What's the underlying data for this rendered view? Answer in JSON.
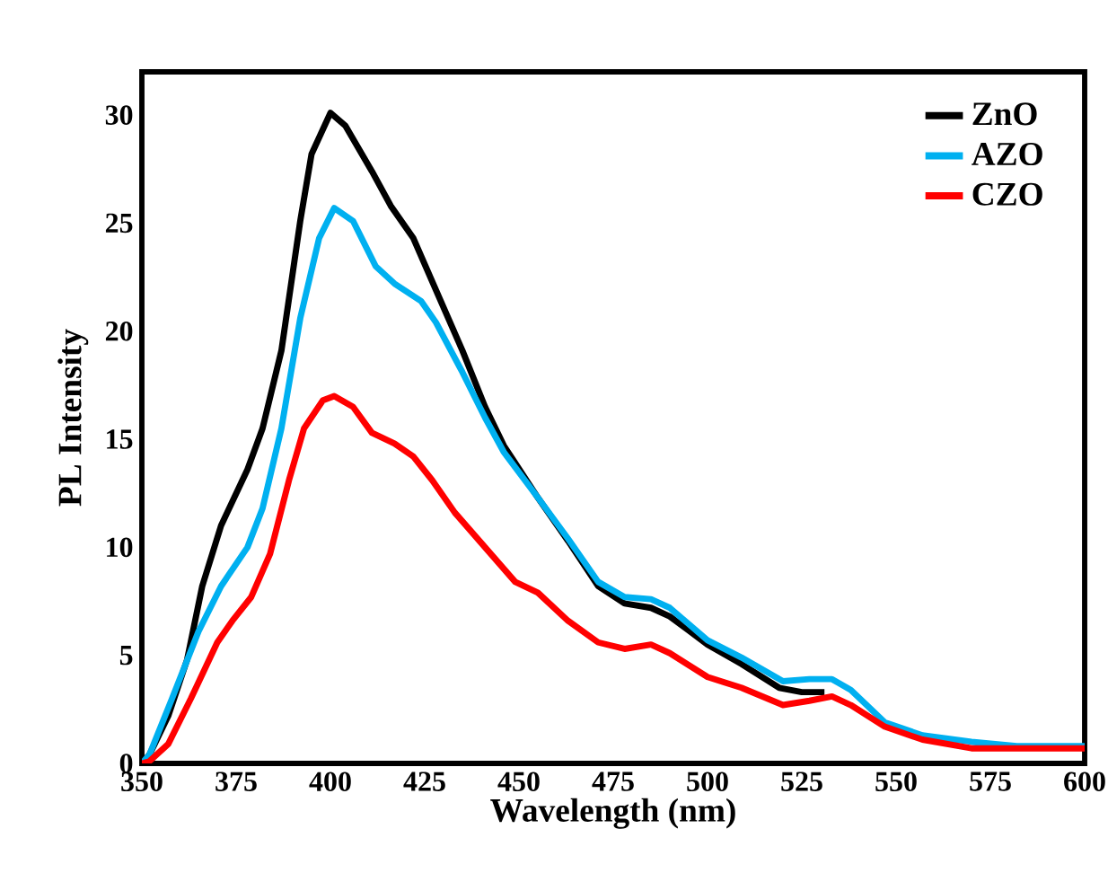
{
  "chart_data": {
    "type": "line",
    "xlabel": "Wavelength (nm)",
    "ylabel": "PL Intensity",
    "xlim": [
      350,
      600
    ],
    "xticks": [
      350,
      375,
      400,
      425,
      450,
      475,
      500,
      525,
      550,
      575,
      600
    ],
    "ylim": [
      0,
      32
    ],
    "yticks": [
      0,
      5,
      10,
      15,
      20,
      25,
      30
    ],
    "grid": false,
    "legend": "top right",
    "marker": "none",
    "line_style": "solid",
    "series": [
      {
        "name": "ZnO",
        "color": "#000000",
        "x": [
          350,
          352,
          357,
          362,
          366,
          371,
          378,
          382,
          387,
          392,
          395,
          400,
          404,
          411,
          416,
          422,
          428,
          435,
          441,
          446,
          455,
          463,
          471,
          478,
          485,
          490,
          500,
          509,
          519,
          525,
          531
        ],
        "values": [
          0,
          0.4,
          2.2,
          4.8,
          8.2,
          11.0,
          13.6,
          15.5,
          19.1,
          25.1,
          28.2,
          30.1,
          29.5,
          27.4,
          25.8,
          24.3,
          21.9,
          19.1,
          16.5,
          14.7,
          12.3,
          10.3,
          8.2,
          7.4,
          7.2,
          6.8,
          5.5,
          4.6,
          3.5,
          3.3,
          3.3
        ]
      },
      {
        "name": "AZO",
        "color": "#00b0f0",
        "x": [
          350,
          352,
          358,
          365,
          371,
          378,
          382,
          387,
          392,
          397,
          401,
          406,
          412,
          417,
          424,
          428,
          435,
          441,
          446,
          455,
          463,
          471,
          478,
          485,
          490,
          500,
          509,
          520,
          527,
          533,
          538,
          547,
          557,
          570,
          582,
          600
        ],
        "values": [
          0,
          0.4,
          3.0,
          6.1,
          8.2,
          10.0,
          11.8,
          15.5,
          20.6,
          24.3,
          25.7,
          25.1,
          23.0,
          22.2,
          21.4,
          20.4,
          18.1,
          16.0,
          14.4,
          12.3,
          10.4,
          8.4,
          7.7,
          7.6,
          7.2,
          5.7,
          4.9,
          3.8,
          3.9,
          3.9,
          3.4,
          1.9,
          1.3,
          1.0,
          0.8,
          0.8
        ]
      },
      {
        "name": "CZO",
        "color": "#ff0000",
        "x": [
          350,
          352,
          357,
          363,
          370,
          374,
          379,
          384,
          389,
          393,
          398,
          401,
          406,
          411,
          417,
          422,
          427,
          433,
          441,
          449,
          455,
          463,
          471,
          478,
          485,
          490,
          500,
          509,
          520,
          527,
          533,
          538,
          547,
          557,
          570,
          582,
          600
        ],
        "values": [
          0,
          0.1,
          0.9,
          3.0,
          5.6,
          6.6,
          7.7,
          9.7,
          13.1,
          15.5,
          16.8,
          17.0,
          16.5,
          15.3,
          14.8,
          14.2,
          13.1,
          11.6,
          10.0,
          8.4,
          7.9,
          6.6,
          5.6,
          5.3,
          5.5,
          5.1,
          4.0,
          3.5,
          2.7,
          2.9,
          3.1,
          2.7,
          1.7,
          1.1,
          0.7,
          0.7,
          0.7
        ]
      }
    ]
  }
}
